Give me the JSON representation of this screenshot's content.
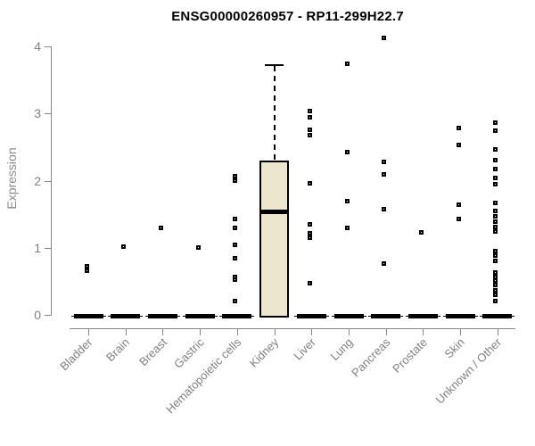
{
  "window": {
    "background": "#ffffff"
  },
  "chart_data": {
    "type": "bar",
    "subtype": "boxplot-with-outliers",
    "title": "ENSG00000260957 - RP11-299H22.7",
    "ylabel": "Expression",
    "xlabel": "",
    "ylim": [
      0,
      4
    ],
    "yticks": [
      0,
      1,
      2,
      3,
      4
    ],
    "grid": false,
    "legend_position": "none",
    "x_label_rotation_deg": 45,
    "categories": [
      "Bladder",
      "Brain",
      "Breast",
      "Gastric",
      "Hematopoietic cells",
      "Kidney",
      "Liver",
      "Lung",
      "Pancreas",
      "Prostate",
      "Skin",
      "Unknown / Other"
    ],
    "series": [
      {
        "category": "Bladder",
        "median": 0,
        "points": [
          0.73,
          0.66
        ]
      },
      {
        "category": "Brain",
        "median": 0,
        "points": [
          1.02
        ]
      },
      {
        "category": "Breast",
        "median": 0,
        "points": [
          1.29
        ]
      },
      {
        "category": "Gastric",
        "median": 0,
        "points": [
          1.0
        ]
      },
      {
        "category": "Hematopoietic cells",
        "median": 0,
        "points": [
          2.07,
          2.0,
          1.43,
          1.29,
          1.04,
          0.84,
          0.57,
          0.52,
          0.2
        ]
      },
      {
        "category": "Kidney",
        "box": {
          "q1": 0,
          "median": 1.53,
          "q3": 2.3,
          "whisker_low": 0,
          "whisker_high": 3.72
        },
        "points": []
      },
      {
        "category": "Liver",
        "median": 0,
        "points": [
          3.03,
          2.95,
          2.76,
          2.68,
          1.96,
          1.35,
          1.22,
          1.15,
          0.47
        ]
      },
      {
        "category": "Lung",
        "median": 0,
        "points": [
          3.74,
          2.43,
          1.69,
          1.29
        ]
      },
      {
        "category": "Pancreas",
        "median": 0,
        "points": [
          4.13,
          2.28,
          2.09,
          1.57,
          0.77
        ]
      },
      {
        "category": "Prostate",
        "median": 0,
        "points": [
          1.23
        ]
      },
      {
        "category": "Skin",
        "median": 0,
        "points": [
          2.79,
          2.53,
          1.64,
          1.43
        ]
      },
      {
        "category": "Unknown / Other",
        "median": 0,
        "points": [
          2.87,
          2.74,
          2.47,
          2.31,
          2.17,
          2.04,
          1.95,
          1.67,
          1.55,
          1.47,
          1.39,
          1.31,
          1.24,
          0.95,
          0.88,
          0.81,
          0.63,
          0.57,
          0.51,
          0.44,
          0.37,
          0.3,
          0.21
        ]
      }
    ],
    "colors": {
      "box_fill": "#ece6ce",
      "box_border": "#000000",
      "point_border": "#000000",
      "zero_bar": "#000000",
      "axis": "#888888",
      "tick_label": "#808080",
      "title": "#000000",
      "background": "#ffffff"
    }
  }
}
